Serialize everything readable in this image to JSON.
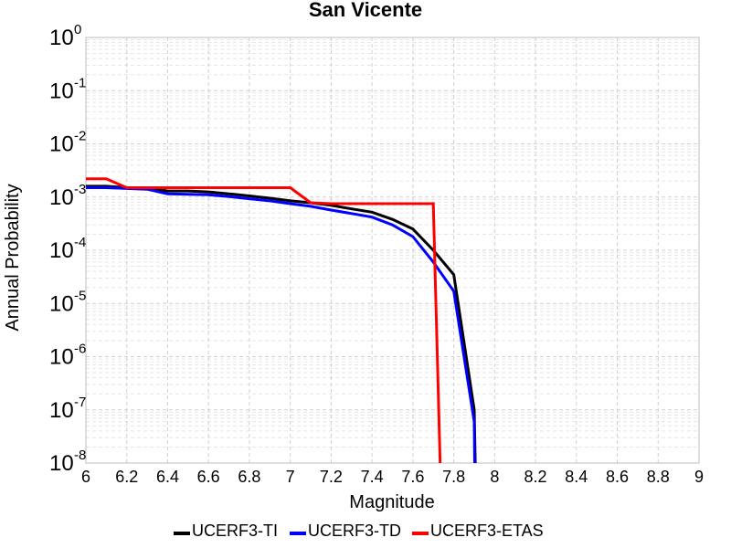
{
  "chart_data": {
    "type": "line",
    "title": "San Vicente",
    "xlabel": "Magnitude",
    "ylabel": "Annual Probability",
    "xlim": [
      6,
      9
    ],
    "ylim": [
      1e-08,
      1
    ],
    "yscale": "log",
    "grid": true,
    "legend_position": "bottom",
    "x_ticks": [
      "6",
      "6.2",
      "6.4",
      "6.6",
      "6.8",
      "7",
      "7.2",
      "7.4",
      "7.6",
      "7.8",
      "8",
      "8.2",
      "8.4",
      "8.6",
      "8.8",
      "9"
    ],
    "y_ticks": [
      {
        "base": "10",
        "exp": "0"
      },
      {
        "base": "10",
        "exp": "-1"
      },
      {
        "base": "10",
        "exp": "-2"
      },
      {
        "base": "10",
        "exp": "-3"
      },
      {
        "base": "10",
        "exp": "-4"
      },
      {
        "base": "10",
        "exp": "-5"
      },
      {
        "base": "10",
        "exp": "-6"
      },
      {
        "base": "10",
        "exp": "-7"
      },
      {
        "base": "10",
        "exp": "-8"
      }
    ],
    "series": [
      {
        "name": "UCERF3-TI",
        "color": "#000000",
        "points": [
          [
            6.0,
            0.0016
          ],
          [
            6.1,
            0.0016
          ],
          [
            6.2,
            0.0015
          ],
          [
            6.3,
            0.0015
          ],
          [
            6.4,
            0.0013
          ],
          [
            6.5,
            0.0013
          ],
          [
            6.6,
            0.00125
          ],
          [
            6.7,
            0.00115
          ],
          [
            6.8,
            0.00105
          ],
          [
            6.9,
            0.00095
          ],
          [
            7.0,
            0.00085
          ],
          [
            7.1,
            0.00078
          ],
          [
            7.2,
            0.0007
          ],
          [
            7.3,
            0.0006
          ],
          [
            7.4,
            0.00052
          ],
          [
            7.5,
            0.00038
          ],
          [
            7.6,
            0.00025
          ],
          [
            7.7,
            0.0001
          ],
          [
            7.8,
            3.5e-05
          ],
          [
            7.9,
            1e-07
          ],
          [
            7.91,
            1e-09
          ]
        ]
      },
      {
        "name": "UCERF3-TD",
        "color": "#0000ff",
        "points": [
          [
            6.0,
            0.0015
          ],
          [
            6.1,
            0.0015
          ],
          [
            6.2,
            0.00145
          ],
          [
            6.3,
            0.0014
          ],
          [
            6.4,
            0.00115
          ],
          [
            6.5,
            0.00113
          ],
          [
            6.6,
            0.0011
          ],
          [
            6.7,
            0.00102
          ],
          [
            6.8,
            0.00093
          ],
          [
            6.9,
            0.00085
          ],
          [
            7.0,
            0.00075
          ],
          [
            7.1,
            0.00067
          ],
          [
            7.2,
            0.00057
          ],
          [
            7.3,
            0.00049
          ],
          [
            7.4,
            0.00042
          ],
          [
            7.5,
            0.0003
          ],
          [
            7.6,
            0.00018
          ],
          [
            7.7,
            6e-05
          ],
          [
            7.8,
            1.7e-05
          ],
          [
            7.9,
            6e-08
          ],
          [
            7.905,
            1e-09
          ]
        ]
      },
      {
        "name": "UCERF3-ETAS",
        "color": "#ff0000",
        "points": [
          [
            6.0,
            0.0022
          ],
          [
            6.1,
            0.0022
          ],
          [
            6.2,
            0.0015
          ],
          [
            6.3,
            0.0015
          ],
          [
            6.4,
            0.0015
          ],
          [
            6.5,
            0.0015
          ],
          [
            6.6,
            0.0015
          ],
          [
            6.7,
            0.0015
          ],
          [
            6.8,
            0.0015
          ],
          [
            6.9,
            0.0015
          ],
          [
            7.0,
            0.0015
          ],
          [
            7.1,
            0.00078
          ],
          [
            7.2,
            0.00075
          ],
          [
            7.3,
            0.00075
          ],
          [
            7.4,
            0.00075
          ],
          [
            7.5,
            0.00075
          ],
          [
            7.6,
            0.00075
          ],
          [
            7.7,
            0.00075
          ],
          [
            7.74,
            1e-09
          ]
        ]
      }
    ]
  }
}
